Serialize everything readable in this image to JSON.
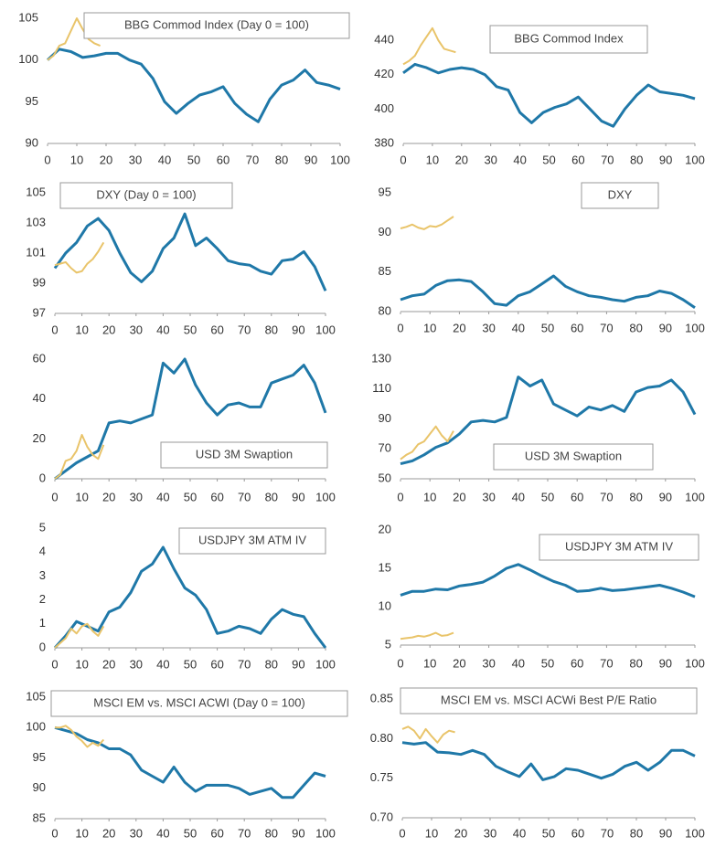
{
  "chart_data": [
    {
      "type": "line",
      "title": "BBG Commod Index (Day 0 = 100)",
      "xlim": [
        0,
        100
      ],
      "xticks": [
        0,
        10,
        20,
        30,
        40,
        50,
        60,
        70,
        80,
        90,
        100
      ],
      "ylim": [
        90,
        105
      ],
      "yticks": [
        90,
        95,
        100,
        105
      ],
      "series": [
        {
          "color": "#1f78a8",
          "x": [
            0,
            4,
            8,
            12,
            16,
            20,
            24,
            28,
            32,
            36,
            40,
            44,
            48,
            52,
            56,
            60,
            64,
            68,
            72,
            76,
            80,
            84,
            88,
            92,
            96,
            100
          ],
          "values": [
            100,
            101.3,
            101,
            100.3,
            100.5,
            100.8,
            100.8,
            100,
            99.5,
            97.8,
            95,
            93.6,
            94.8,
            95.8,
            96.2,
            96.8,
            94.8,
            93.5,
            92.6,
            95.3,
            97,
            97.6,
            98.8,
            97.3,
            97,
            96.5
          ]
        },
        {
          "color": "#e9c46a",
          "x": [
            0,
            2,
            4,
            6,
            8,
            10,
            12,
            14,
            16,
            18
          ],
          "values": [
            100,
            100.5,
            101.7,
            102,
            103.5,
            105,
            103.7,
            102.5,
            102,
            101.7
          ]
        }
      ]
    },
    {
      "type": "line",
      "title": "BBG Commod Index",
      "xlim": [
        0,
        100
      ],
      "xticks": [
        0,
        10,
        20,
        30,
        40,
        50,
        60,
        70,
        80,
        90,
        100
      ],
      "ylim": [
        380,
        440
      ],
      "yticks": [
        380,
        400,
        420,
        440
      ],
      "series": [
        {
          "color": "#1f78a8",
          "x": [
            0,
            4,
            8,
            12,
            16,
            20,
            24,
            28,
            32,
            36,
            40,
            44,
            48,
            52,
            56,
            60,
            64,
            68,
            72,
            76,
            80,
            84,
            88,
            92,
            96,
            100
          ],
          "values": [
            421,
            426,
            424,
            421,
            423,
            424,
            423,
            420,
            413,
            411,
            398,
            392,
            398,
            401,
            403,
            407,
            400,
            393,
            390,
            400,
            408,
            414,
            410,
            409,
            408,
            406
          ]
        },
        {
          "color": "#e9c46a",
          "x": [
            0,
            2,
            4,
            6,
            8,
            10,
            12,
            14,
            16,
            18
          ],
          "values": [
            426,
            428,
            431,
            437,
            442,
            447,
            440,
            435,
            434,
            433
          ]
        }
      ]
    },
    {
      "type": "line",
      "title": "DXY (Day 0 = 100)",
      "xlim": [
        0,
        100
      ],
      "xticks": [
        0,
        10,
        20,
        30,
        40,
        50,
        60,
        70,
        80,
        90,
        100
      ],
      "ylim": [
        97,
        105
      ],
      "yticks": [
        97,
        99,
        101,
        103,
        105
      ],
      "series": [
        {
          "color": "#1f78a8",
          "x": [
            0,
            4,
            8,
            12,
            16,
            20,
            24,
            28,
            32,
            36,
            40,
            44,
            48,
            52,
            56,
            60,
            64,
            68,
            72,
            76,
            80,
            84,
            88,
            92,
            96,
            100
          ],
          "values": [
            100,
            101,
            101.7,
            102.8,
            103.3,
            102.5,
            101,
            99.7,
            99.1,
            99.8,
            101.3,
            102,
            103.6,
            101.5,
            102,
            101.3,
            100.5,
            100.3,
            100.2,
            99.8,
            99.6,
            100.5,
            100.6,
            101.1,
            100.1,
            98.5
          ]
        },
        {
          "color": "#e9c46a",
          "x": [
            0,
            2,
            4,
            6,
            8,
            10,
            12,
            14,
            16,
            18
          ],
          "values": [
            100.2,
            100.3,
            100.4,
            100,
            99.7,
            99.8,
            100.3,
            100.6,
            101.1,
            101.7
          ]
        }
      ]
    },
    {
      "type": "line",
      "title": "DXY",
      "xlim": [
        0,
        100
      ],
      "xticks": [
        0,
        10,
        20,
        30,
        40,
        50,
        60,
        70,
        80,
        90,
        100
      ],
      "ylim": [
        80,
        95
      ],
      "yticks": [
        80,
        85,
        90,
        95
      ],
      "series": [
        {
          "color": "#1f78a8",
          "x": [
            0,
            4,
            8,
            12,
            16,
            20,
            24,
            28,
            32,
            36,
            40,
            44,
            48,
            52,
            56,
            60,
            64,
            68,
            72,
            76,
            80,
            84,
            88,
            92,
            96,
            100
          ],
          "values": [
            81.5,
            82,
            82.2,
            83.3,
            83.9,
            84,
            83.8,
            82.5,
            81,
            80.8,
            82,
            82.5,
            83.5,
            84.5,
            83.2,
            82.5,
            82,
            81.8,
            81.5,
            81.3,
            81.8,
            82,
            82.6,
            82.3,
            81.5,
            80.5
          ]
        },
        {
          "color": "#e9c46a",
          "x": [
            0,
            2,
            4,
            6,
            8,
            10,
            12,
            14,
            16,
            18
          ],
          "values": [
            90.5,
            90.7,
            91,
            90.6,
            90.4,
            90.8,
            90.7,
            91,
            91.5,
            92
          ]
        }
      ]
    },
    {
      "type": "line",
      "title": "USD 3M Swaption",
      "xlim": [
        0,
        100
      ],
      "xticks": [
        0,
        10,
        20,
        30,
        40,
        50,
        60,
        70,
        80,
        90,
        100
      ],
      "ylim": [
        0,
        60
      ],
      "yticks": [
        0,
        20,
        40,
        60
      ],
      "series": [
        {
          "color": "#1f78a8",
          "x": [
            0,
            4,
            8,
            12,
            16,
            20,
            24,
            28,
            32,
            36,
            40,
            44,
            48,
            52,
            56,
            60,
            64,
            68,
            72,
            76,
            80,
            84,
            88,
            92,
            96,
            100
          ],
          "values": [
            0,
            4,
            8,
            11,
            14,
            28,
            29,
            28,
            30,
            32,
            58,
            53,
            60,
            47,
            38,
            32,
            37,
            38,
            36,
            36,
            48,
            50,
            52,
            57,
            48,
            33
          ]
        },
        {
          "color": "#e9c46a",
          "x": [
            0,
            2,
            4,
            6,
            8,
            10,
            12,
            14,
            16,
            18
          ],
          "values": [
            0,
            2,
            9,
            10,
            14,
            22,
            16,
            12,
            10,
            17
          ]
        }
      ]
    },
    {
      "type": "line",
      "title": "USD 3M Swaption",
      "xlim": [
        0,
        100
      ],
      "xticks": [
        0,
        10,
        20,
        30,
        40,
        50,
        60,
        70,
        80,
        90,
        100
      ],
      "ylim": [
        50,
        130
      ],
      "yticks": [
        50,
        70,
        90,
        110,
        130
      ],
      "series": [
        {
          "color": "#1f78a8",
          "x": [
            0,
            4,
            8,
            12,
            16,
            20,
            24,
            28,
            32,
            36,
            40,
            44,
            48,
            52,
            56,
            60,
            64,
            68,
            72,
            76,
            80,
            84,
            88,
            92,
            96,
            100
          ],
          "values": [
            60,
            62,
            66,
            71,
            74,
            80,
            88,
            89,
            88,
            91,
            118,
            112,
            116,
            100,
            96,
            92,
            98,
            96,
            99,
            95,
            108,
            111,
            112,
            116,
            108,
            93
          ]
        },
        {
          "color": "#e9c46a",
          "x": [
            0,
            2,
            4,
            6,
            8,
            10,
            12,
            14,
            16,
            18
          ],
          "values": [
            63,
            66,
            68,
            73,
            75,
            80,
            85,
            79,
            75,
            82
          ]
        }
      ]
    },
    {
      "type": "line",
      "title": "USDJPY 3M ATM IV",
      "xlim": [
        0,
        100
      ],
      "xticks": [
        0,
        10,
        20,
        30,
        40,
        50,
        60,
        70,
        80,
        90,
        100
      ],
      "ylim": [
        0,
        5
      ],
      "yticks": [
        0,
        1,
        2,
        3,
        4,
        5
      ],
      "series": [
        {
          "color": "#1f78a8",
          "x": [
            0,
            4,
            8,
            12,
            16,
            20,
            24,
            28,
            32,
            36,
            40,
            44,
            48,
            52,
            56,
            60,
            64,
            68,
            72,
            76,
            80,
            84,
            88,
            92,
            96,
            100
          ],
          "values": [
            0,
            0.5,
            1.1,
            0.9,
            0.7,
            1.5,
            1.7,
            2.3,
            3.2,
            3.5,
            4.2,
            3.3,
            2.5,
            2.2,
            1.6,
            0.6,
            0.7,
            0.9,
            0.8,
            0.6,
            1.2,
            1.6,
            1.4,
            1.3,
            0.6,
            0
          ]
        },
        {
          "color": "#e9c46a",
          "x": [
            0,
            2,
            4,
            6,
            8,
            10,
            12,
            14,
            16,
            18
          ],
          "values": [
            0,
            0.2,
            0.4,
            0.8,
            0.6,
            0.9,
            1,
            0.7,
            0.5,
            0.9
          ]
        }
      ]
    },
    {
      "type": "line",
      "title": "USDJPY 3M ATM IV",
      "xlim": [
        0,
        100
      ],
      "xticks": [
        0,
        10,
        20,
        30,
        40,
        50,
        60,
        70,
        80,
        90,
        100
      ],
      "ylim": [
        5,
        20
      ],
      "yticks": [
        5,
        10,
        15,
        20
      ],
      "series": [
        {
          "color": "#1f78a8",
          "x": [
            0,
            4,
            8,
            12,
            16,
            20,
            24,
            28,
            32,
            36,
            40,
            44,
            48,
            52,
            56,
            60,
            64,
            68,
            72,
            76,
            80,
            84,
            88,
            92,
            96,
            100
          ],
          "values": [
            11.5,
            12,
            12,
            12.3,
            12.2,
            12.7,
            12.9,
            13.2,
            14,
            15,
            15.5,
            14.8,
            14,
            13.3,
            12.8,
            12,
            12.1,
            12.4,
            12.1,
            12.2,
            12.4,
            12.6,
            12.8,
            12.4,
            11.9,
            11.3
          ]
        },
        {
          "color": "#e9c46a",
          "x": [
            0,
            2,
            4,
            6,
            8,
            10,
            12,
            14,
            16,
            18
          ],
          "values": [
            5.8,
            5.9,
            6,
            6.2,
            6.1,
            6.3,
            6.6,
            6.2,
            6.3,
            6.6
          ]
        }
      ]
    },
    {
      "type": "line",
      "title": "MSCI EM vs. MSCI ACWI (Day 0 = 100)",
      "xlim": [
        0,
        100
      ],
      "xticks": [
        0,
        10,
        20,
        30,
        40,
        50,
        60,
        70,
        80,
        90,
        100
      ],
      "ylim": [
        85,
        105
      ],
      "yticks": [
        85,
        90,
        95,
        100,
        105
      ],
      "series": [
        {
          "color": "#1f78a8",
          "x": [
            0,
            4,
            8,
            12,
            16,
            20,
            24,
            28,
            32,
            36,
            40,
            44,
            48,
            52,
            56,
            60,
            64,
            68,
            72,
            76,
            80,
            84,
            88,
            92,
            96,
            100
          ],
          "values": [
            100,
            99.5,
            99,
            98,
            97.5,
            96.5,
            96.5,
            95.5,
            93,
            92,
            91,
            93.5,
            91,
            89.5,
            90.5,
            90.5,
            90.5,
            90,
            89,
            89.5,
            90,
            88.5,
            88.5,
            90.5,
            92.5,
            92
          ]
        },
        {
          "color": "#e9c46a",
          "x": [
            0,
            2,
            4,
            6,
            8,
            10,
            12,
            14,
            16,
            18
          ],
          "values": [
            100,
            100,
            100.3,
            99.6,
            98.5,
            97.8,
            96.8,
            97.5,
            97,
            98
          ]
        }
      ]
    },
    {
      "type": "line",
      "title": "MSCI EM vs. MSCI ACWi Best P/E Ratio",
      "xlim": [
        0,
        100
      ],
      "xticks": [
        0,
        10,
        20,
        30,
        40,
        50,
        60,
        70,
        80,
        90,
        100
      ],
      "ylim": [
        0.7,
        0.85
      ],
      "yticks": [
        {
          "value": 0.7,
          "label": "0.70"
        },
        0.75,
        {
          "value": 0.8,
          "label": "0.80"
        },
        0.85
      ],
      "series": [
        {
          "color": "#1f78a8",
          "x": [
            0,
            4,
            8,
            12,
            16,
            20,
            24,
            28,
            32,
            36,
            40,
            44,
            48,
            52,
            56,
            60,
            64,
            68,
            72,
            76,
            80,
            84,
            88,
            92,
            96,
            100
          ],
          "values": [
            0.795,
            0.793,
            0.795,
            0.783,
            0.782,
            0.78,
            0.785,
            0.78,
            0.765,
            0.758,
            0.752,
            0.768,
            0.748,
            0.752,
            0.762,
            0.76,
            0.755,
            0.75,
            0.755,
            0.765,
            0.77,
            0.76,
            0.77,
            0.785,
            0.785,
            0.778
          ]
        },
        {
          "color": "#e9c46a",
          "x": [
            0,
            2,
            4,
            6,
            8,
            10,
            12,
            14,
            16,
            18
          ],
          "values": [
            0.812,
            0.815,
            0.81,
            0.8,
            0.812,
            0.803,
            0.795,
            0.805,
            0.81,
            0.808
          ]
        }
      ]
    }
  ]
}
